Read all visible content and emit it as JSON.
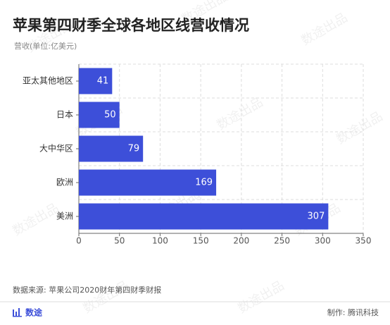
{
  "chart_data": {
    "type": "bar",
    "orientation": "horizontal",
    "title": "苹果第四财季全球各地区线营收情况",
    "subtitle": "营收(单位:亿美元)",
    "categories": [
      "亚太其他地区",
      "日本",
      "大中华区",
      "欧洲",
      "美洲"
    ],
    "values": [
      41,
      50,
      79,
      169,
      307
    ],
    "color": "#3d4fd9",
    "xlim": [
      0,
      350
    ],
    "xticks": [
      0,
      50,
      100,
      150,
      200,
      250,
      300,
      350
    ],
    "grid": true,
    "source": "数据来源: 苹果公司2020财年第四财季财报",
    "logo": "数途",
    "credit": "制作: 腾讯科技",
    "watermark": "数途出品"
  }
}
